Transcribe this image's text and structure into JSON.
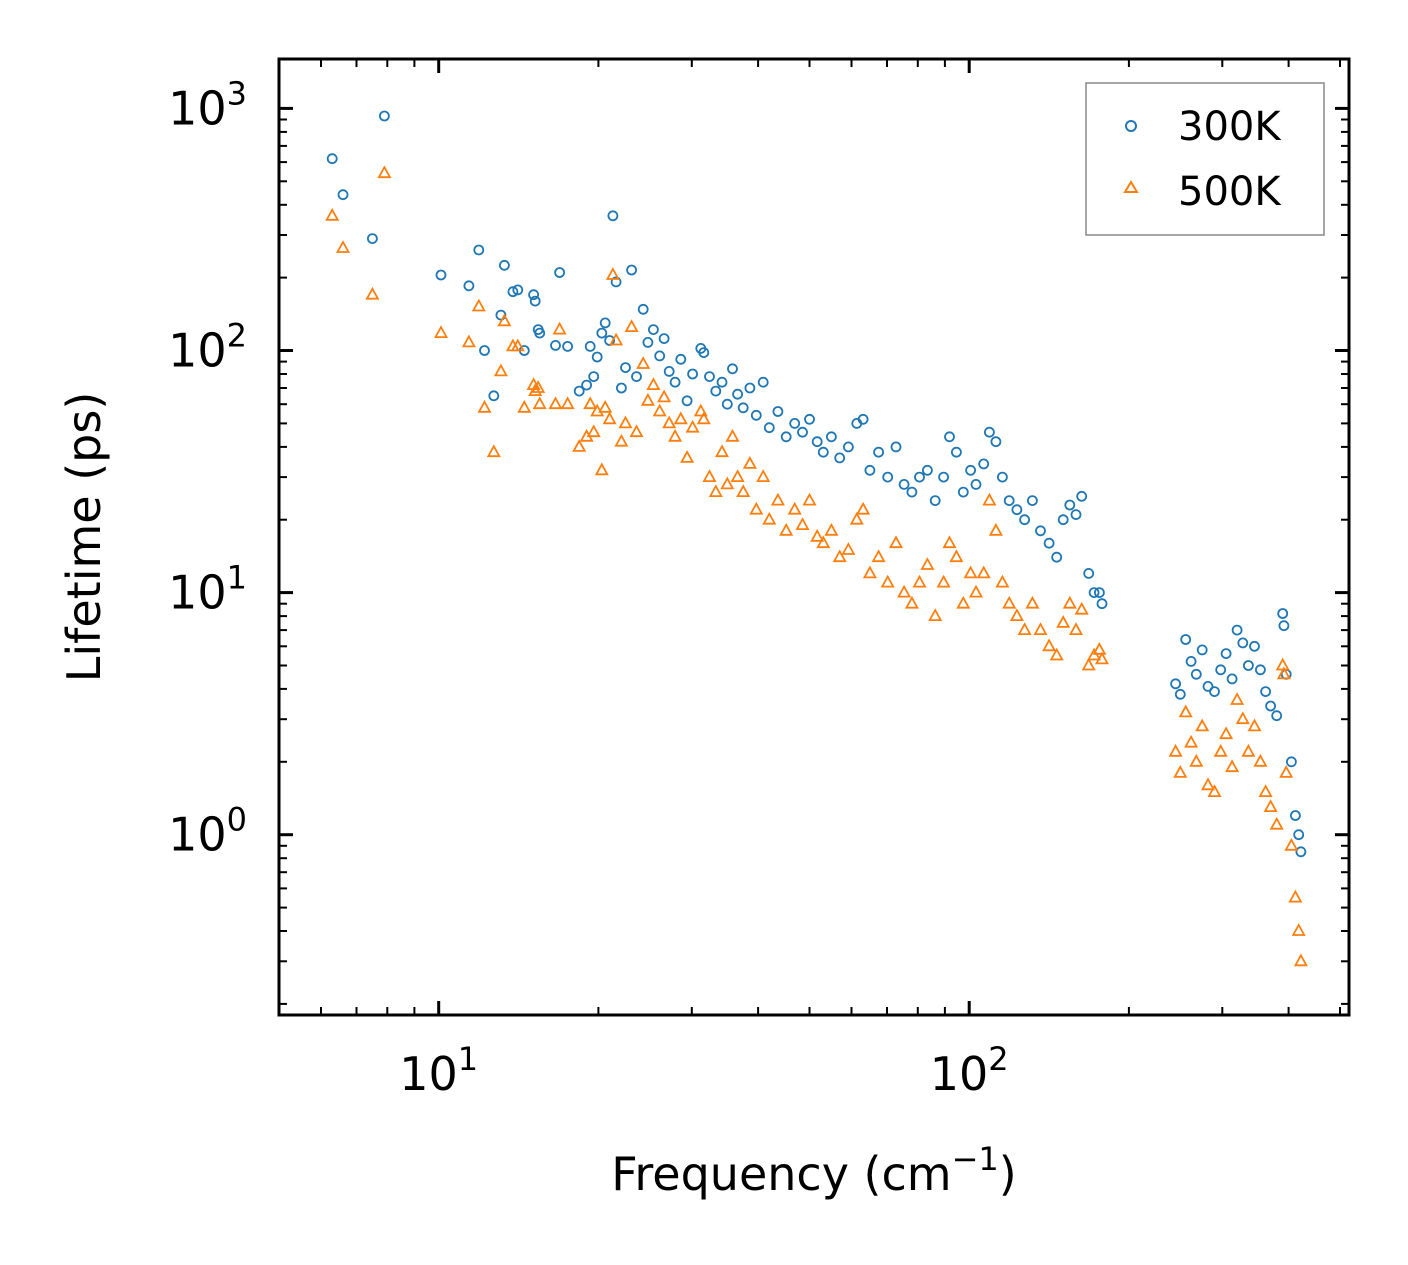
{
  "chart_data": {
    "type": "scatter",
    "title": "",
    "xlabel": "Frequency (cm",
    "xlabel_sup": "−1",
    "xlabel_close": ")",
    "ylabel": "Lifetime (ps)",
    "xscale": "log",
    "yscale": "log",
    "xlim": [
      5,
      520
    ],
    "ylim": [
      0.18,
      1600
    ],
    "x_ticks": [
      {
        "base": "10",
        "exp": "1",
        "value": 10
      },
      {
        "base": "10",
        "exp": "2",
        "value": 100
      }
    ],
    "y_ticks": [
      {
        "base": "10",
        "exp": "0",
        "value": 1
      },
      {
        "base": "10",
        "exp": "1",
        "value": 10
      },
      {
        "base": "10",
        "exp": "2",
        "value": 100
      },
      {
        "base": "10",
        "exp": "3",
        "value": 1000
      }
    ],
    "legend": {
      "position": "top-right",
      "entries": [
        {
          "label": "300K",
          "color": "#1f77b4",
          "marker": "circle"
        },
        {
          "label": "500K",
          "color": "#ff7f0e",
          "marker": "triangle"
        }
      ]
    },
    "series": [
      {
        "name": "300K",
        "color": "#1f77b4",
        "marker": "circle",
        "points": [
          [
            6.3,
            620
          ],
          [
            6.6,
            440
          ],
          [
            7.5,
            290
          ],
          [
            7.9,
            930
          ],
          [
            10.1,
            205
          ],
          [
            11.4,
            185
          ],
          [
            11.9,
            260
          ],
          [
            12.2,
            100
          ],
          [
            12.7,
            65
          ],
          [
            13.1,
            140
          ],
          [
            13.3,
            225
          ],
          [
            13.8,
            175
          ],
          [
            14.1,
            178
          ],
          [
            14.5,
            100
          ],
          [
            15.1,
            170
          ],
          [
            15.2,
            160
          ],
          [
            15.4,
            122
          ],
          [
            15.5,
            118
          ],
          [
            16.6,
            105
          ],
          [
            16.9,
            210
          ],
          [
            17.5,
            104
          ],
          [
            18.4,
            68
          ],
          [
            19.0,
            72
          ],
          [
            19.3,
            104
          ],
          [
            19.6,
            78
          ],
          [
            19.9,
            94
          ],
          [
            20.3,
            118
          ],
          [
            20.6,
            130
          ],
          [
            21.0,
            110
          ],
          [
            21.3,
            360
          ],
          [
            21.6,
            192
          ],
          [
            22.1,
            70
          ],
          [
            22.5,
            85
          ],
          [
            23.1,
            215
          ],
          [
            23.6,
            78
          ],
          [
            24.3,
            148
          ],
          [
            24.8,
            108
          ],
          [
            25.4,
            122
          ],
          [
            26.1,
            95
          ],
          [
            26.6,
            112
          ],
          [
            27.2,
            82
          ],
          [
            27.9,
            74
          ],
          [
            28.6,
            92
          ],
          [
            29.4,
            62
          ],
          [
            30.1,
            80
          ],
          [
            31.2,
            102
          ],
          [
            31.6,
            98
          ],
          [
            32.4,
            78
          ],
          [
            33.3,
            68
          ],
          [
            34.2,
            74
          ],
          [
            35.0,
            60
          ],
          [
            35.8,
            84
          ],
          [
            36.6,
            66
          ],
          [
            37.5,
            58
          ],
          [
            38.6,
            70
          ],
          [
            39.7,
            54
          ],
          [
            40.9,
            74
          ],
          [
            42.0,
            48
          ],
          [
            43.6,
            56
          ],
          [
            45.2,
            44
          ],
          [
            46.9,
            50
          ],
          [
            48.5,
            46
          ],
          [
            50.0,
            52
          ],
          [
            51.7,
            42
          ],
          [
            53.1,
            38
          ],
          [
            55.0,
            44
          ],
          [
            57.0,
            36
          ],
          [
            59.2,
            40
          ],
          [
            61.4,
            50
          ],
          [
            63.1,
            52
          ],
          [
            65.0,
            32
          ],
          [
            67.5,
            38
          ],
          [
            70.2,
            30
          ],
          [
            72.8,
            40
          ],
          [
            75.4,
            28
          ],
          [
            78.0,
            26
          ],
          [
            80.6,
            30
          ],
          [
            83.4,
            32
          ],
          [
            86.3,
            24
          ],
          [
            89.5,
            30
          ],
          [
            91.8,
            44
          ],
          [
            94.6,
            38
          ],
          [
            97.5,
            26
          ],
          [
            100.6,
            32
          ],
          [
            103.0,
            28
          ],
          [
            106.5,
            34
          ],
          [
            109.2,
            46
          ],
          [
            112.3,
            42
          ],
          [
            115.5,
            30
          ],
          [
            119.0,
            24
          ],
          [
            123.0,
            22
          ],
          [
            127.2,
            20
          ],
          [
            131.6,
            24
          ],
          [
            136.3,
            18
          ],
          [
            141.5,
            16
          ],
          [
            146.2,
            14
          ],
          [
            150.4,
            20
          ],
          [
            154.8,
            23
          ],
          [
            159.0,
            21
          ],
          [
            163.0,
            25
          ],
          [
            168.0,
            12
          ],
          [
            172.0,
            10
          ],
          [
            176.0,
            10
          ],
          [
            178.0,
            9
          ],
          [
            245.0,
            4.2
          ],
          [
            250.0,
            3.8
          ],
          [
            256.0,
            6.4
          ],
          [
            262.0,
            5.2
          ],
          [
            268.0,
            4.6
          ],
          [
            275.0,
            5.8
          ],
          [
            282.0,
            4.1
          ],
          [
            290.0,
            3.9
          ],
          [
            298.0,
            4.8
          ],
          [
            305.0,
            5.6
          ],
          [
            313.0,
            4.4
          ],
          [
            320.0,
            7.0
          ],
          [
            328.0,
            6.2
          ],
          [
            336.0,
            5.0
          ],
          [
            345.0,
            6.0
          ],
          [
            354.0,
            4.8
          ],
          [
            362.0,
            3.9
          ],
          [
            370.0,
            3.4
          ],
          [
            380.0,
            3.1
          ],
          [
            390.0,
            8.2
          ],
          [
            392.0,
            7.3
          ],
          [
            396.0,
            4.6
          ],
          [
            405.0,
            2.0
          ],
          [
            412.0,
            1.2
          ],
          [
            418.0,
            1.0
          ],
          [
            422.0,
            0.85
          ]
        ]
      },
      {
        "name": "500K",
        "color": "#ff7f0e",
        "marker": "triangle",
        "points": [
          [
            6.3,
            360
          ],
          [
            6.6,
            265
          ],
          [
            7.5,
            170
          ],
          [
            7.9,
            540
          ],
          [
            10.1,
            118
          ],
          [
            11.4,
            108
          ],
          [
            11.9,
            152
          ],
          [
            12.2,
            58
          ],
          [
            12.7,
            38
          ],
          [
            13.1,
            82
          ],
          [
            13.3,
            132
          ],
          [
            13.8,
            104
          ],
          [
            14.1,
            104
          ],
          [
            14.5,
            58
          ],
          [
            15.1,
            72
          ],
          [
            15.2,
            68
          ],
          [
            15.4,
            70
          ],
          [
            15.5,
            60
          ],
          [
            16.6,
            60
          ],
          [
            16.9,
            122
          ],
          [
            17.5,
            60
          ],
          [
            18.4,
            40
          ],
          [
            19.0,
            44
          ],
          [
            19.3,
            60
          ],
          [
            19.6,
            46
          ],
          [
            19.9,
            56
          ],
          [
            20.3,
            32
          ],
          [
            20.6,
            58
          ],
          [
            21.0,
            52
          ],
          [
            21.3,
            205
          ],
          [
            21.6,
            110
          ],
          [
            22.1,
            42
          ],
          [
            22.5,
            50
          ],
          [
            23.1,
            125
          ],
          [
            23.6,
            46
          ],
          [
            24.3,
            88
          ],
          [
            24.8,
            62
          ],
          [
            25.4,
            72
          ],
          [
            26.1,
            56
          ],
          [
            26.6,
            64
          ],
          [
            27.2,
            50
          ],
          [
            27.9,
            44
          ],
          [
            28.6,
            52
          ],
          [
            29.4,
            36
          ],
          [
            30.1,
            48
          ],
          [
            31.2,
            56
          ],
          [
            31.6,
            52
          ],
          [
            32.4,
            30
          ],
          [
            33.3,
            26
          ],
          [
            34.2,
            38
          ],
          [
            35.0,
            28
          ],
          [
            35.8,
            44
          ],
          [
            36.6,
            30
          ],
          [
            37.5,
            26
          ],
          [
            38.6,
            34
          ],
          [
            39.7,
            22
          ],
          [
            40.9,
            30
          ],
          [
            42.0,
            20
          ],
          [
            43.6,
            24
          ],
          [
            45.2,
            18
          ],
          [
            46.9,
            22
          ],
          [
            48.5,
            19
          ],
          [
            50.0,
            24
          ],
          [
            51.7,
            17
          ],
          [
            53.1,
            16
          ],
          [
            55.0,
            18
          ],
          [
            57.0,
            14
          ],
          [
            59.2,
            15
          ],
          [
            61.4,
            20
          ],
          [
            63.1,
            22
          ],
          [
            65.0,
            12
          ],
          [
            67.5,
            14
          ],
          [
            70.2,
            11
          ],
          [
            72.8,
            16
          ],
          [
            75.4,
            10
          ],
          [
            78.0,
            9
          ],
          [
            80.6,
            11
          ],
          [
            83.4,
            13
          ],
          [
            86.3,
            8
          ],
          [
            89.5,
            11
          ],
          [
            91.8,
            16
          ],
          [
            94.6,
            14
          ],
          [
            97.5,
            9
          ],
          [
            100.6,
            12
          ],
          [
            103.0,
            10
          ],
          [
            106.5,
            12
          ],
          [
            109.2,
            24
          ],
          [
            112.3,
            18
          ],
          [
            115.5,
            11
          ],
          [
            119.0,
            9
          ],
          [
            123.0,
            8
          ],
          [
            127.2,
            7
          ],
          [
            131.6,
            9
          ],
          [
            136.3,
            7
          ],
          [
            141.5,
            6
          ],
          [
            146.2,
            5.5
          ],
          [
            150.4,
            7.5
          ],
          [
            154.8,
            9
          ],
          [
            159.0,
            7
          ],
          [
            163.0,
            8.5
          ],
          [
            168.0,
            5
          ],
          [
            172.0,
            5.5
          ],
          [
            176.0,
            5.8
          ],
          [
            178.0,
            5.3
          ],
          [
            245.0,
            2.2
          ],
          [
            250.0,
            1.8
          ],
          [
            256.0,
            3.2
          ],
          [
            262.0,
            2.4
          ],
          [
            268.0,
            2.0
          ],
          [
            275.0,
            2.8
          ],
          [
            282.0,
            1.6
          ],
          [
            290.0,
            1.5
          ],
          [
            298.0,
            2.2
          ],
          [
            305.0,
            2.6
          ],
          [
            313.0,
            1.9
          ],
          [
            320.0,
            3.6
          ],
          [
            328.0,
            3.0
          ],
          [
            336.0,
            2.2
          ],
          [
            345.0,
            2.8
          ],
          [
            354.0,
            2.0
          ],
          [
            362.0,
            1.5
          ],
          [
            370.0,
            1.3
          ],
          [
            380.0,
            1.1
          ],
          [
            390.0,
            5.0
          ],
          [
            392.0,
            4.6
          ],
          [
            396.0,
            1.8
          ],
          [
            405.0,
            0.9
          ],
          [
            412.0,
            0.55
          ],
          [
            418.0,
            0.4
          ],
          [
            422.0,
            0.3
          ]
        ]
      }
    ]
  }
}
